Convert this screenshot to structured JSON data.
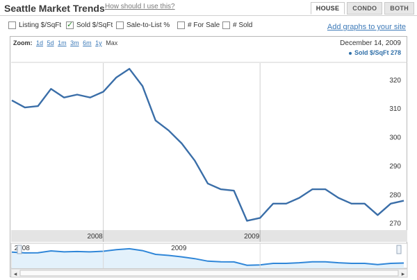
{
  "header": {
    "title": "Seattle Market Trends",
    "help_link": "How should I use this?",
    "tabs": [
      {
        "label": "HOUSE",
        "active": true
      },
      {
        "label": "CONDO",
        "active": false
      },
      {
        "label": "BOTH",
        "active": false
      }
    ]
  },
  "options": {
    "items": [
      {
        "label": "Listing $/SqFt",
        "checked": false
      },
      {
        "label": "Sold $/SqFt",
        "checked": true
      },
      {
        "label": "Sale-to-List %",
        "checked": false
      },
      {
        "label": "# For Sale",
        "checked": false
      },
      {
        "label": "# Sold",
        "checked": false
      }
    ],
    "add_graphs_link": "Add graphs to your site"
  },
  "zoom": {
    "label": "Zoom:",
    "options": [
      "1d",
      "5d",
      "1m",
      "3m",
      "6m",
      "1y"
    ],
    "current": "Max"
  },
  "chart_header": {
    "date": "December 14, 2009",
    "legend_series": "Sold $/SqFt",
    "legend_value": "278"
  },
  "colors": {
    "line": "#3a6ea8",
    "axis_band": "#e4e4e4",
    "nav_fill": "#e3f1fb",
    "nav_line": "#2f86d8",
    "link": "#3d7ab8"
  },
  "chart_data": {
    "type": "line",
    "series": [
      {
        "name": "Sold $/SqFt",
        "x": [
          "2007-06",
          "2007-07",
          "2007-08",
          "2007-09",
          "2007-10",
          "2007-11",
          "2007-12",
          "2008-01",
          "2008-02",
          "2008-03",
          "2008-04",
          "2008-05",
          "2008-06",
          "2008-07",
          "2008-08",
          "2008-09",
          "2008-10",
          "2008-11",
          "2008-12",
          "2009-01",
          "2009-02",
          "2009-03",
          "2009-04",
          "2009-05",
          "2009-06",
          "2009-07",
          "2009-08",
          "2009-09",
          "2009-10",
          "2009-11",
          "2009-12"
        ],
        "y": [
          313,
          310.5,
          311,
          317,
          314,
          315,
          314,
          316,
          321,
          324,
          318,
          306,
          302.5,
          298,
          292,
          284,
          282,
          281.5,
          271,
          272,
          277,
          277,
          279,
          282,
          282,
          279,
          277,
          277,
          273,
          277,
          278
        ]
      }
    ],
    "y_ticks": [
      270,
      280,
      290,
      300,
      310,
      320
    ],
    "x_tick_labels": [
      "2008",
      "2009"
    ],
    "navigator_labels": [
      "2008",
      "2009"
    ],
    "ylim": [
      268,
      326
    ]
  }
}
